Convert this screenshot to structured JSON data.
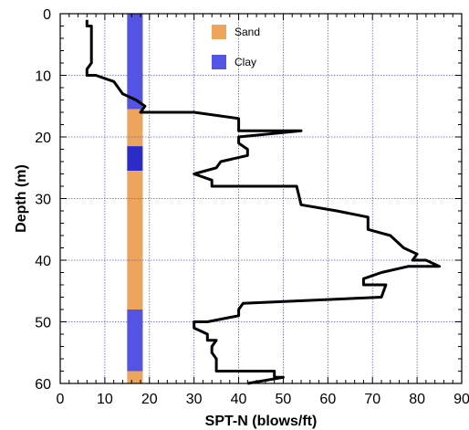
{
  "chart_data": {
    "type": "line",
    "xlabel": "SPT-N (blows/ft)",
    "ylabel": "Depth (m)",
    "xlim": [
      0,
      90
    ],
    "ylim": [
      0,
      60
    ],
    "y_inverted": true,
    "x_ticks": [
      0,
      10,
      20,
      30,
      40,
      50,
      60,
      70,
      80,
      90
    ],
    "y_ticks": [
      0,
      10,
      20,
      30,
      40,
      50,
      60
    ],
    "grid": true,
    "legend_position": "top-center",
    "series": [
      {
        "color": "#000000",
        "points": [
          [
            6,
            1
          ],
          [
            6,
            2
          ],
          [
            7,
            2
          ],
          [
            7,
            4
          ],
          [
            7,
            6
          ],
          [
            7,
            8
          ],
          [
            6,
            9
          ],
          [
            6,
            10
          ],
          [
            8,
            10
          ],
          [
            12,
            11
          ],
          [
            13,
            12
          ],
          [
            14,
            13
          ],
          [
            17,
            14
          ],
          [
            19,
            15
          ],
          [
            18,
            16
          ],
          [
            30,
            16
          ],
          [
            40,
            17
          ],
          [
            40,
            19
          ],
          [
            54,
            19
          ],
          [
            40,
            20
          ],
          [
            40,
            21
          ],
          [
            42,
            22
          ],
          [
            42,
            23
          ],
          [
            36,
            24
          ],
          [
            35,
            25
          ],
          [
            30,
            26
          ],
          [
            34,
            27
          ],
          [
            34,
            28
          ],
          [
            53,
            28
          ],
          [
            54,
            31
          ],
          [
            62,
            32
          ],
          [
            69,
            33
          ],
          [
            69,
            35
          ],
          [
            74,
            36
          ],
          [
            77,
            38
          ],
          [
            80,
            39
          ],
          [
            79,
            40
          ],
          [
            82,
            40
          ],
          [
            85,
            41
          ],
          [
            78,
            41
          ],
          [
            72,
            42
          ],
          [
            68,
            43
          ],
          [
            68,
            44
          ],
          [
            73,
            44
          ],
          [
            72,
            46
          ],
          [
            41,
            47
          ],
          [
            40,
            48
          ],
          [
            40,
            49
          ],
          [
            33,
            50
          ],
          [
            30,
            50
          ],
          [
            30,
            51
          ],
          [
            33,
            52
          ],
          [
            33,
            53
          ],
          [
            35,
            53
          ],
          [
            34,
            54
          ],
          [
            34,
            55
          ],
          [
            35,
            56
          ],
          [
            35,
            58
          ],
          [
            48,
            58
          ],
          [
            48,
            59
          ],
          [
            50,
            59
          ],
          [
            42,
            60
          ]
        ]
      }
    ],
    "soil_column": {
      "x_range": [
        15,
        18.5
      ],
      "layers": [
        {
          "type": "Clay",
          "top": 0,
          "bottom": 15.5
        },
        {
          "type": "Sand",
          "top": 15.5,
          "bottom": 21.5
        },
        {
          "type": "Clay",
          "top": 21.5,
          "bottom": 25.5
        },
        {
          "type": "Sand",
          "top": 25.5,
          "bottom": 48
        },
        {
          "type": "Clay",
          "top": 48,
          "bottom": 58
        },
        {
          "type": "Sand",
          "top": 58,
          "bottom": 60
        }
      ],
      "colors": {
        "Sand": "#ECA55B",
        "Clay": "#5454E4",
        "Clay_dark": "#2B2BC8"
      }
    },
    "legend": [
      {
        "label": "Sand",
        "color": "#ECA55B"
      },
      {
        "label": "Clay",
        "color": "#5454E4"
      }
    ]
  }
}
